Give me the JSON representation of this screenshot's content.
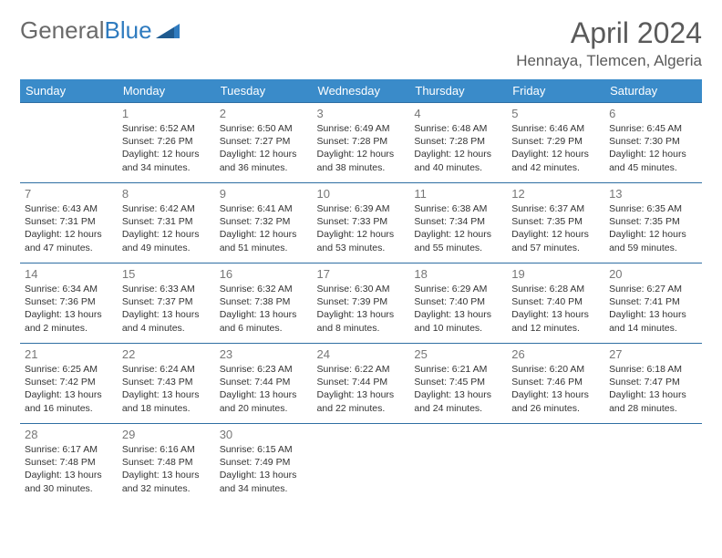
{
  "header": {
    "logo_part1": "General",
    "logo_part2": "Blue",
    "month_title": "April 2024",
    "location": "Hennaya, Tlemcen, Algeria"
  },
  "colors": {
    "header_bg": "#3a8bc9",
    "header_text": "#ffffff",
    "row_border": "#2f6fa3",
    "logo_gray": "#6a6a6a",
    "logo_blue": "#2f7bbf",
    "title_gray": "#5a5a5a",
    "body_text": "#333333",
    "daynum_gray": "#777777"
  },
  "layout": {
    "columns": 7,
    "rows": 5,
    "cell_font_size_pt": 10.5,
    "header_font_size_pt": 13
  },
  "weekdays": [
    "Sunday",
    "Monday",
    "Tuesday",
    "Wednesday",
    "Thursday",
    "Friday",
    "Saturday"
  ],
  "days": [
    {
      "n": "1",
      "sr": "6:52 AM",
      "ss": "7:26 PM",
      "dl": "12 hours and 34 minutes."
    },
    {
      "n": "2",
      "sr": "6:50 AM",
      "ss": "7:27 PM",
      "dl": "12 hours and 36 minutes."
    },
    {
      "n": "3",
      "sr": "6:49 AM",
      "ss": "7:28 PM",
      "dl": "12 hours and 38 minutes."
    },
    {
      "n": "4",
      "sr": "6:48 AM",
      "ss": "7:28 PM",
      "dl": "12 hours and 40 minutes."
    },
    {
      "n": "5",
      "sr": "6:46 AM",
      "ss": "7:29 PM",
      "dl": "12 hours and 42 minutes."
    },
    {
      "n": "6",
      "sr": "6:45 AM",
      "ss": "7:30 PM",
      "dl": "12 hours and 45 minutes."
    },
    {
      "n": "7",
      "sr": "6:43 AM",
      "ss": "7:31 PM",
      "dl": "12 hours and 47 minutes."
    },
    {
      "n": "8",
      "sr": "6:42 AM",
      "ss": "7:31 PM",
      "dl": "12 hours and 49 minutes."
    },
    {
      "n": "9",
      "sr": "6:41 AM",
      "ss": "7:32 PM",
      "dl": "12 hours and 51 minutes."
    },
    {
      "n": "10",
      "sr": "6:39 AM",
      "ss": "7:33 PM",
      "dl": "12 hours and 53 minutes."
    },
    {
      "n": "11",
      "sr": "6:38 AM",
      "ss": "7:34 PM",
      "dl": "12 hours and 55 minutes."
    },
    {
      "n": "12",
      "sr": "6:37 AM",
      "ss": "7:35 PM",
      "dl": "12 hours and 57 minutes."
    },
    {
      "n": "13",
      "sr": "6:35 AM",
      "ss": "7:35 PM",
      "dl": "12 hours and 59 minutes."
    },
    {
      "n": "14",
      "sr": "6:34 AM",
      "ss": "7:36 PM",
      "dl": "13 hours and 2 minutes."
    },
    {
      "n": "15",
      "sr": "6:33 AM",
      "ss": "7:37 PM",
      "dl": "13 hours and 4 minutes."
    },
    {
      "n": "16",
      "sr": "6:32 AM",
      "ss": "7:38 PM",
      "dl": "13 hours and 6 minutes."
    },
    {
      "n": "17",
      "sr": "6:30 AM",
      "ss": "7:39 PM",
      "dl": "13 hours and 8 minutes."
    },
    {
      "n": "18",
      "sr": "6:29 AM",
      "ss": "7:40 PM",
      "dl": "13 hours and 10 minutes."
    },
    {
      "n": "19",
      "sr": "6:28 AM",
      "ss": "7:40 PM",
      "dl": "13 hours and 12 minutes."
    },
    {
      "n": "20",
      "sr": "6:27 AM",
      "ss": "7:41 PM",
      "dl": "13 hours and 14 minutes."
    },
    {
      "n": "21",
      "sr": "6:25 AM",
      "ss": "7:42 PM",
      "dl": "13 hours and 16 minutes."
    },
    {
      "n": "22",
      "sr": "6:24 AM",
      "ss": "7:43 PM",
      "dl": "13 hours and 18 minutes."
    },
    {
      "n": "23",
      "sr": "6:23 AM",
      "ss": "7:44 PM",
      "dl": "13 hours and 20 minutes."
    },
    {
      "n": "24",
      "sr": "6:22 AM",
      "ss": "7:44 PM",
      "dl": "13 hours and 22 minutes."
    },
    {
      "n": "25",
      "sr": "6:21 AM",
      "ss": "7:45 PM",
      "dl": "13 hours and 24 minutes."
    },
    {
      "n": "26",
      "sr": "6:20 AM",
      "ss": "7:46 PM",
      "dl": "13 hours and 26 minutes."
    },
    {
      "n": "27",
      "sr": "6:18 AM",
      "ss": "7:47 PM",
      "dl": "13 hours and 28 minutes."
    },
    {
      "n": "28",
      "sr": "6:17 AM",
      "ss": "7:48 PM",
      "dl": "13 hours and 30 minutes."
    },
    {
      "n": "29",
      "sr": "6:16 AM",
      "ss": "7:48 PM",
      "dl": "13 hours and 32 minutes."
    },
    {
      "n": "30",
      "sr": "6:15 AM",
      "ss": "7:49 PM",
      "dl": "13 hours and 34 minutes."
    }
  ],
  "labels": {
    "sunrise": "Sunrise: ",
    "sunset": "Sunset: ",
    "daylight": "Daylight: "
  },
  "start_weekday_offset": 1
}
